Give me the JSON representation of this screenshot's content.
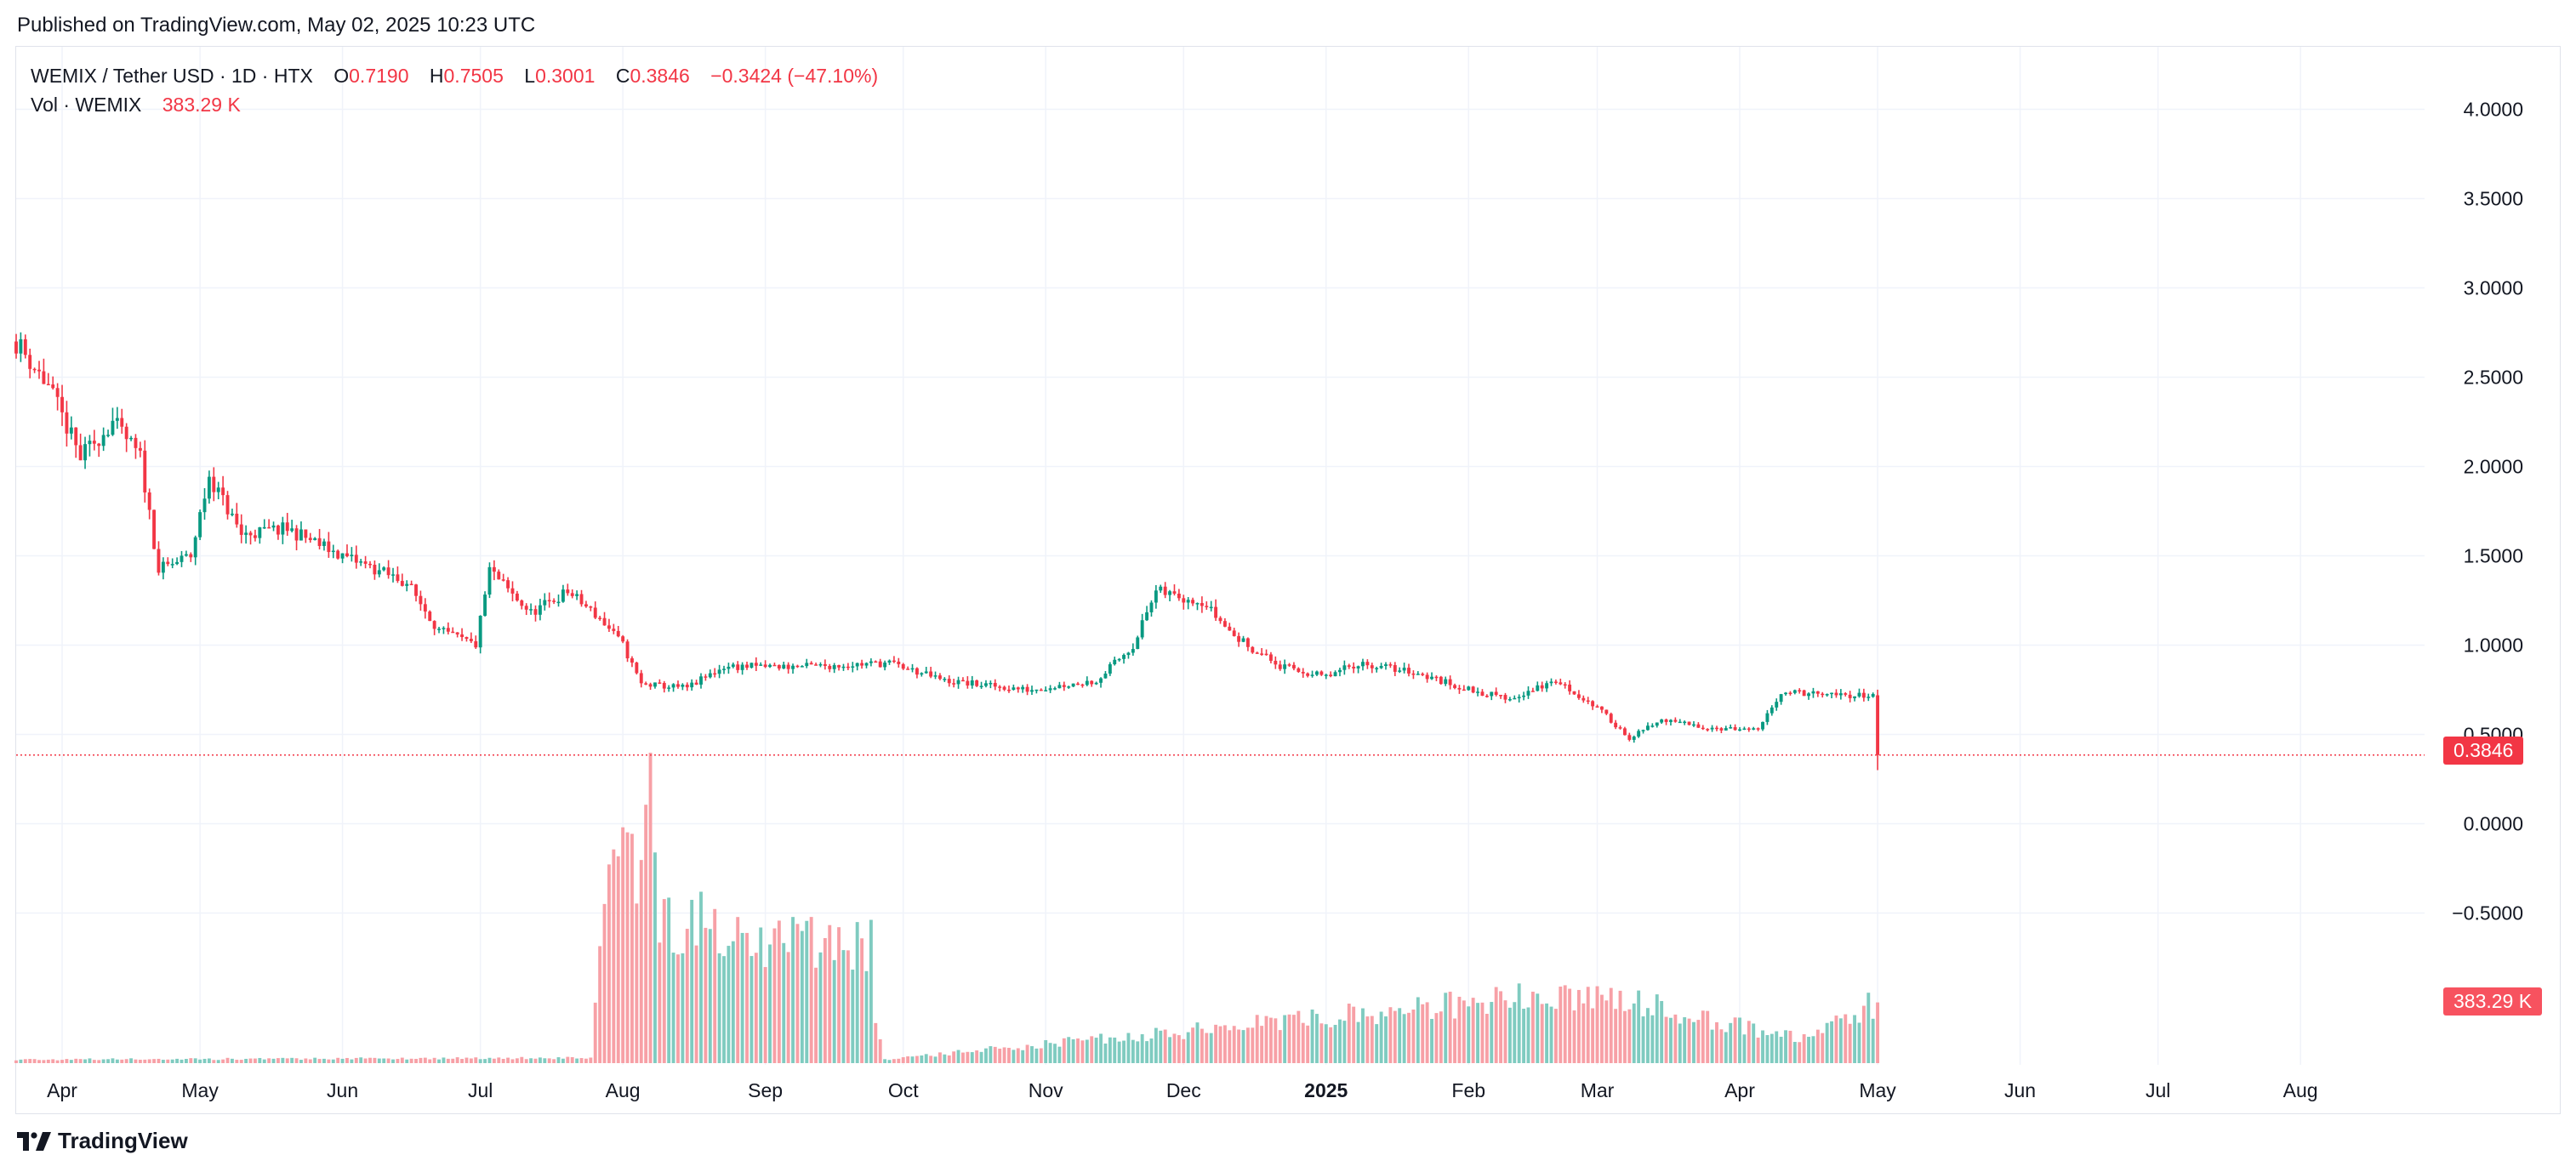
{
  "published": "Published on TradingView.com, May 02, 2025 10:23 UTC",
  "legend": {
    "symbol": "WEMIX / Tether USD · 1D · HTX",
    "o_label": "O",
    "o_value": "0.7190",
    "h_label": "H",
    "h_value": "0.7505",
    "l_label": "L",
    "l_value": "0.3001",
    "c_label": "C",
    "c_value": "0.3846",
    "change": "−0.3424 (−47.10%)",
    "vol_label": "Vol · WEMIX",
    "vol_value": "383.29 K"
  },
  "price_tag": "0.3846",
  "vol_tag": "383.29 K",
  "brand": "TradingView",
  "colors": {
    "up": "#089981",
    "down": "#f23645",
    "vol_up": "#7fcbc0",
    "vol_down": "#f7a0a6",
    "grid": "#f0f3fa"
  },
  "chart_data": {
    "type": "candlestick",
    "title": "WEMIX / Tether USD · 1D · HTX",
    "y_ticks": [
      "4.0000",
      "3.5000",
      "3.0000",
      "2.5000",
      "2.0000",
      "1.5000",
      "1.0000",
      "0.5000",
      "0.0000",
      "−0.5000"
    ],
    "y_tick_values": [
      4.0,
      3.5,
      3.0,
      2.5,
      2.0,
      1.5,
      1.0,
      0.5,
      0.0,
      -0.5
    ],
    "ylim": [
      -1.35,
      4.35
    ],
    "x_ticks": [
      {
        "label": "Apr",
        "date": "2024-04-01"
      },
      {
        "label": "May",
        "date": "2024-05-01"
      },
      {
        "label": "Jun",
        "date": "2024-06-01"
      },
      {
        "label": "Jul",
        "date": "2024-07-01"
      },
      {
        "label": "Aug",
        "date": "2024-08-01"
      },
      {
        "label": "Sep",
        "date": "2024-09-01"
      },
      {
        "label": "Oct",
        "date": "2024-10-01"
      },
      {
        "label": "Nov",
        "date": "2024-11-01"
      },
      {
        "label": "Dec",
        "date": "2024-12-01"
      },
      {
        "label": "2025",
        "date": "2025-01-01",
        "bold": true
      },
      {
        "label": "Feb",
        "date": "2025-02-01"
      },
      {
        "label": "Mar",
        "date": "2025-03-01"
      },
      {
        "label": "Apr",
        "date": "2025-04-01"
      },
      {
        "label": "May",
        "date": "2025-05-01"
      },
      {
        "label": "Jun",
        "date": "2025-06-01"
      },
      {
        "label": "Jul",
        "date": "2025-07-01"
      },
      {
        "label": "Aug",
        "date": "2025-08-01"
      }
    ],
    "xlim": [
      "2024-03-22",
      "2025-08-28"
    ],
    "last_price": 0.3846,
    "last_volume_label": "383.29 K",
    "close_series": [
      {
        "date": "2024-03-22",
        "close": 2.7
      },
      {
        "date": "2024-03-29",
        "close": 2.45
      },
      {
        "date": "2024-04-05",
        "close": 2.05
      },
      {
        "date": "2024-04-12",
        "close": 2.25
      },
      {
        "date": "2024-04-18",
        "close": 2.05
      },
      {
        "date": "2024-04-22",
        "close": 1.42
      },
      {
        "date": "2024-04-29",
        "close": 1.5
      },
      {
        "date": "2024-05-03",
        "close": 1.95
      },
      {
        "date": "2024-05-10",
        "close": 1.62
      },
      {
        "date": "2024-05-20",
        "close": 1.65
      },
      {
        "date": "2024-06-01",
        "close": 1.5
      },
      {
        "date": "2024-06-15",
        "close": 1.35
      },
      {
        "date": "2024-06-22",
        "close": 1.08
      },
      {
        "date": "2024-06-30",
        "close": 1.0
      },
      {
        "date": "2024-07-03",
        "close": 1.42
      },
      {
        "date": "2024-07-08",
        "close": 1.28
      },
      {
        "date": "2024-07-12",
        "close": 1.18
      },
      {
        "date": "2024-07-20",
        "close": 1.3
      },
      {
        "date": "2024-07-27",
        "close": 1.15
      },
      {
        "date": "2024-08-01",
        "close": 1.0
      },
      {
        "date": "2024-08-05",
        "close": 0.78
      },
      {
        "date": "2024-08-15",
        "close": 0.76
      },
      {
        "date": "2024-08-23",
        "close": 0.88
      },
      {
        "date": "2024-09-10",
        "close": 0.88
      },
      {
        "date": "2024-09-28",
        "close": 0.9
      },
      {
        "date": "2024-10-10",
        "close": 0.8
      },
      {
        "date": "2024-10-28",
        "close": 0.75
      },
      {
        "date": "2024-11-12",
        "close": 0.8
      },
      {
        "date": "2024-11-20",
        "close": 1.0
      },
      {
        "date": "2024-11-25",
        "close": 1.3
      },
      {
        "date": "2024-12-05",
        "close": 1.25
      },
      {
        "date": "2024-12-12",
        "close": 1.05
      },
      {
        "date": "2024-12-22",
        "close": 0.88
      },
      {
        "date": "2025-01-01",
        "close": 0.82
      },
      {
        "date": "2025-01-08",
        "close": 0.9
      },
      {
        "date": "2025-01-20",
        "close": 0.85
      },
      {
        "date": "2025-02-01",
        "close": 0.75
      },
      {
        "date": "2025-02-10",
        "close": 0.7
      },
      {
        "date": "2025-02-20",
        "close": 0.8
      },
      {
        "date": "2025-03-01",
        "close": 0.65
      },
      {
        "date": "2025-03-08",
        "close": 0.48
      },
      {
        "date": "2025-03-15",
        "close": 0.58
      },
      {
        "date": "2025-03-25",
        "close": 0.54
      },
      {
        "date": "2025-04-05",
        "close": 0.52
      },
      {
        "date": "2025-04-10",
        "close": 0.74
      },
      {
        "date": "2025-04-20",
        "close": 0.72
      },
      {
        "date": "2025-04-30",
        "close": 0.72
      },
      {
        "date": "2025-05-01",
        "close": 0.3846
      }
    ],
    "volume_series": [
      {
        "date": "2024-03-22",
        "value": 0.02
      },
      {
        "date": "2024-07-25",
        "value": 0.03
      },
      {
        "date": "2024-07-26",
        "value": 0.3
      },
      {
        "date": "2024-07-28",
        "value": 1.05
      },
      {
        "date": "2024-08-04",
        "value": 1.15
      },
      {
        "date": "2024-08-07",
        "value": 1.4
      },
      {
        "date": "2024-08-09",
        "value": 0.8
      },
      {
        "date": "2024-08-20",
        "value": 0.78
      },
      {
        "date": "2024-08-25",
        "value": 0.68
      },
      {
        "date": "2024-09-10",
        "value": 0.7
      },
      {
        "date": "2024-09-24",
        "value": 0.67
      },
      {
        "date": "2024-09-25",
        "value": 0.25
      },
      {
        "date": "2024-09-27",
        "value": 0.02
      },
      {
        "date": "2025-03-01",
        "value": 0.4
      },
      {
        "date": "2025-04-13",
        "value": 0.14
      },
      {
        "date": "2025-05-01",
        "value": 0.34
      }
    ]
  }
}
